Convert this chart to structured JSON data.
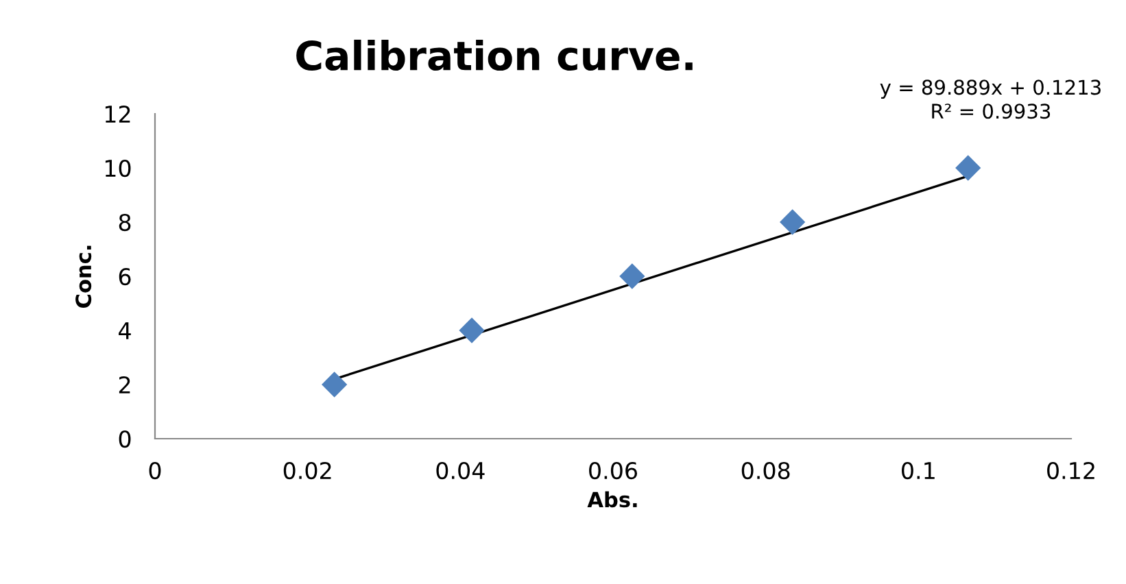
{
  "chart_data": {
    "type": "scatter",
    "title": "Calibration curve.",
    "xlabel": "Abs.",
    "ylabel": "Conc.",
    "xlim": [
      0,
      0.12
    ],
    "xticks": [
      0,
      0.02,
      0.04,
      0.06,
      0.08,
      0.1,
      0.12
    ],
    "ylim": [
      0,
      12
    ],
    "yticks": [
      0,
      2,
      4,
      6,
      8,
      10,
      12
    ],
    "grid": false,
    "legend": false,
    "marker": "diamond",
    "series": [
      {
        "type": "scatter",
        "color": "#4f81bd",
        "x": [
          0.0235,
          0.0415,
          0.0625,
          0.0835,
          0.1065
        ],
        "values": [
          2,
          4,
          6,
          8,
          10
        ]
      },
      {
        "type": "line",
        "color": "#000000",
        "x": [
          0.0235,
          0.1065
        ],
        "values": [
          2.2,
          9.7
        ],
        "marker": "none",
        "line_style": "solid"
      }
    ],
    "annotations": [
      "y = 89.889x + 0.1213\nR² = 0.9933"
    ]
  }
}
